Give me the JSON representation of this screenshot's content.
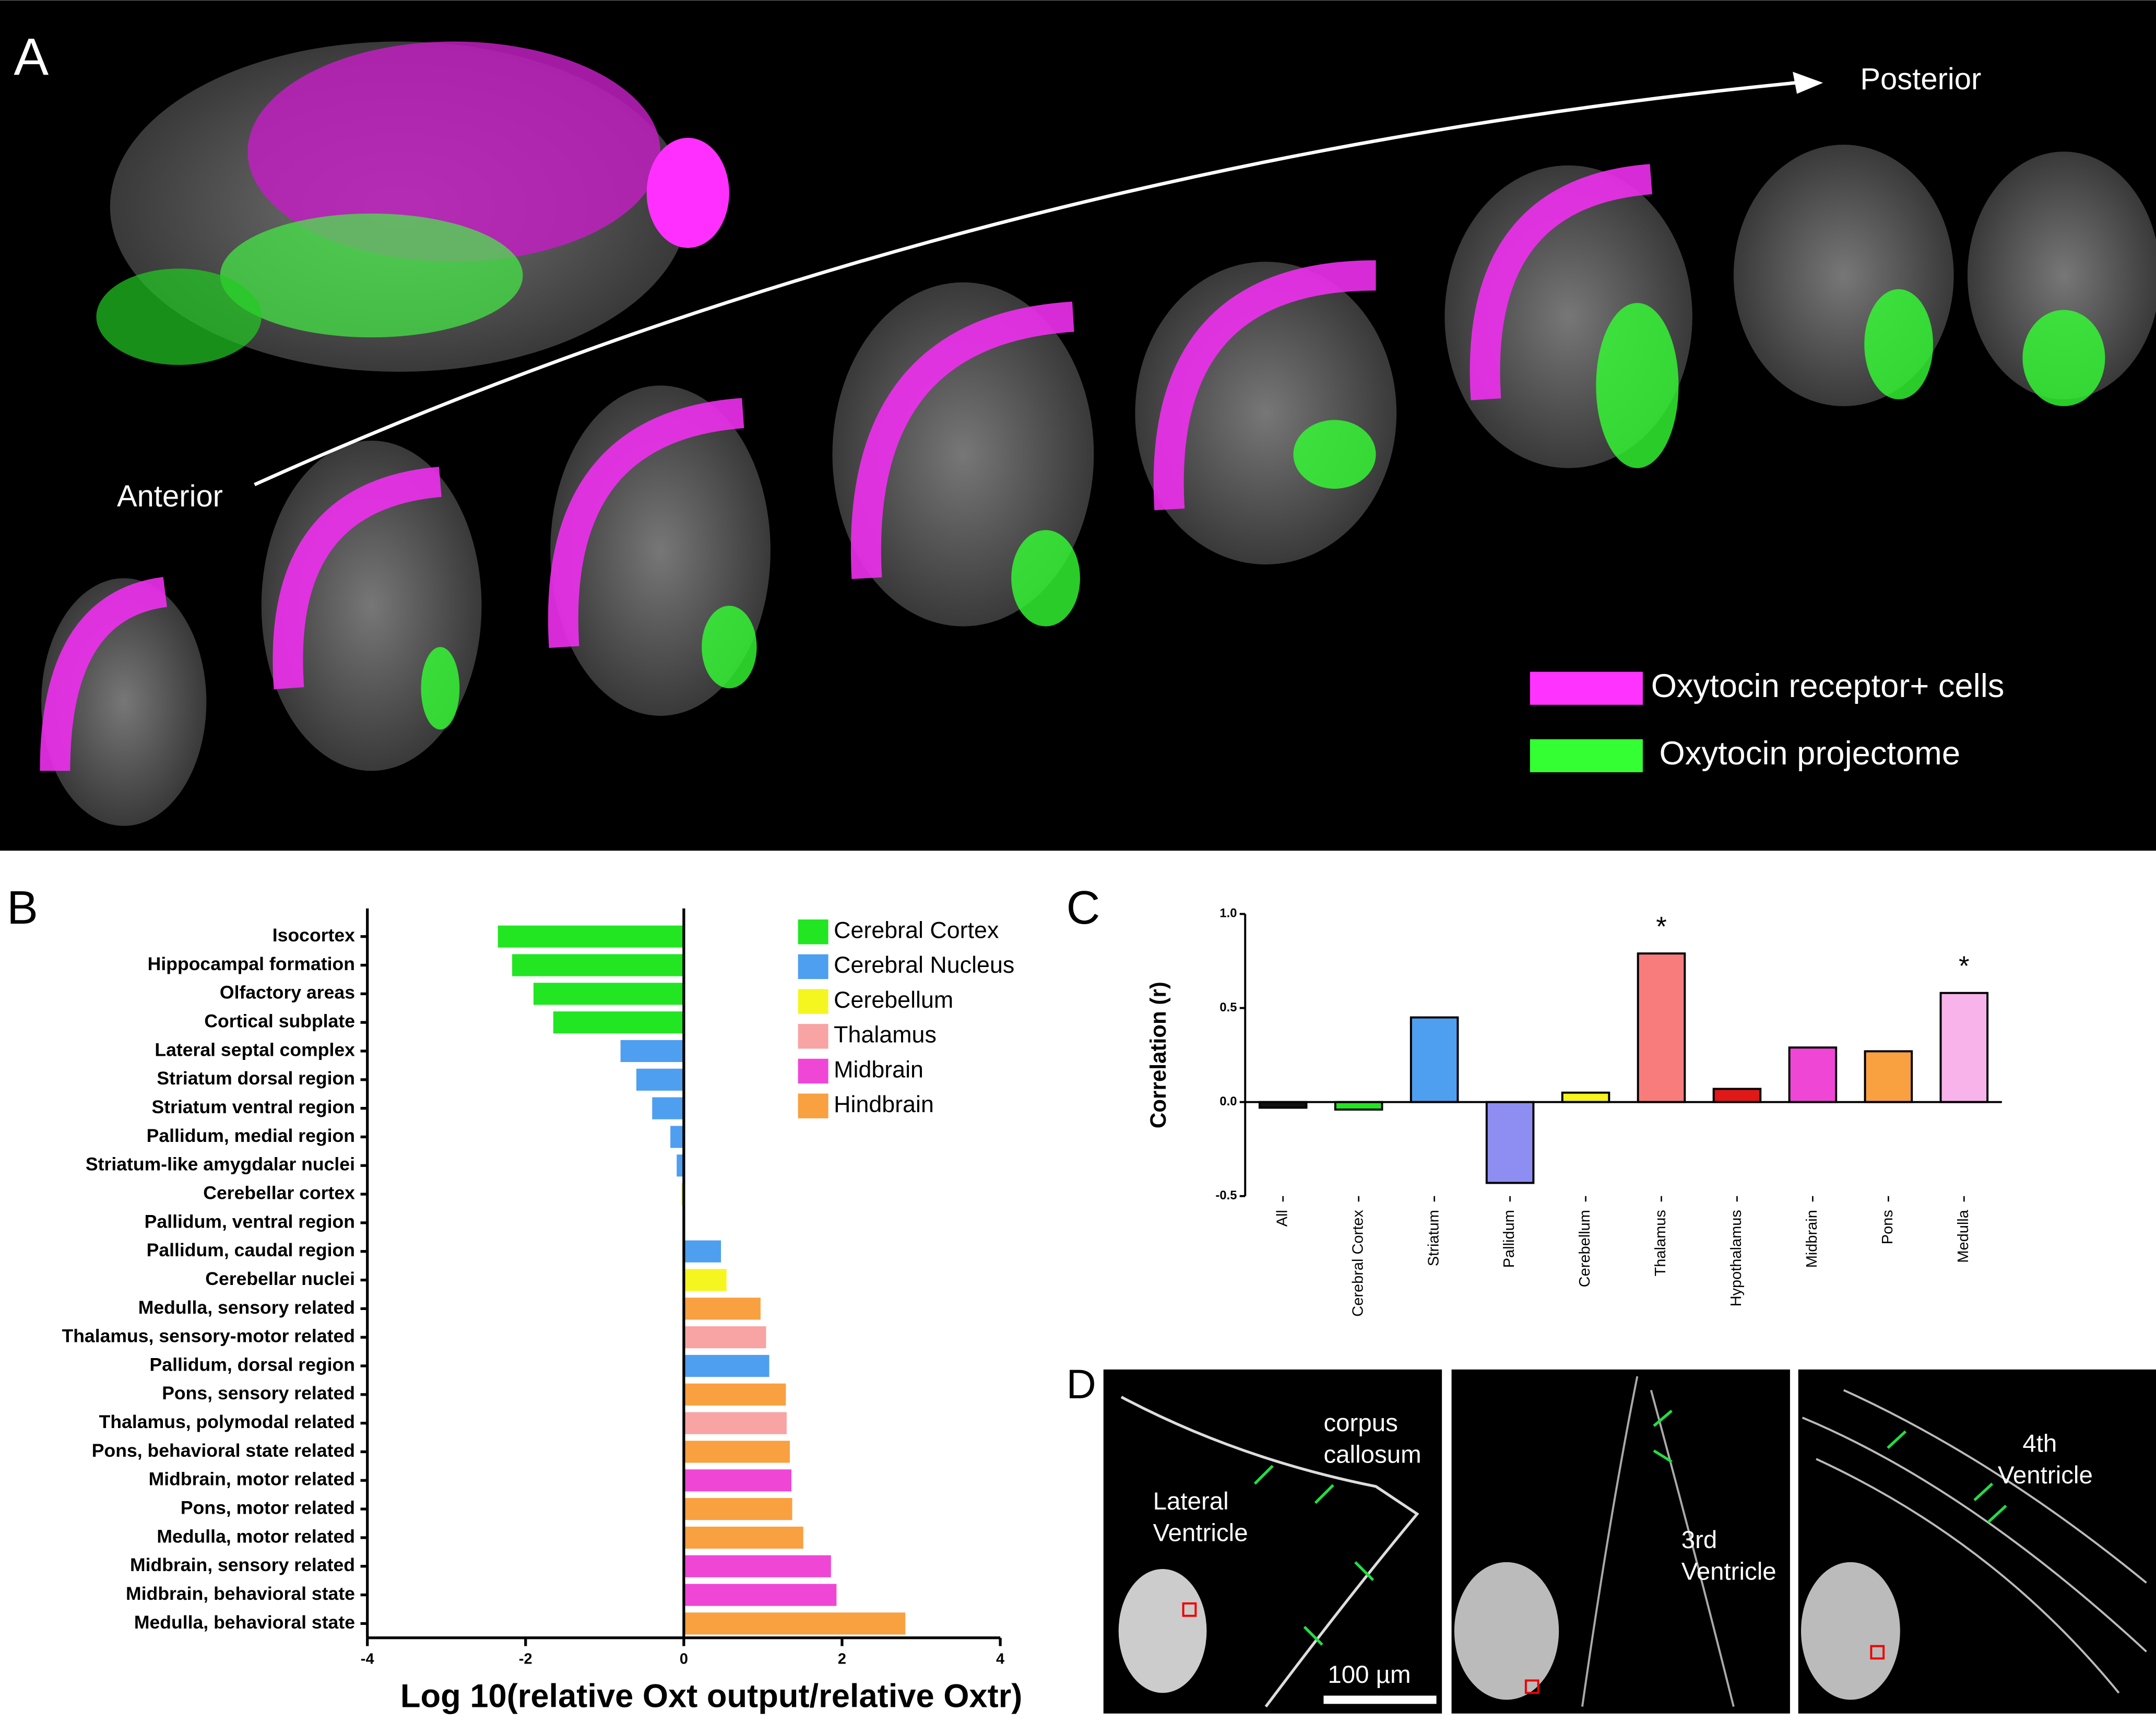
{
  "panel_a": {
    "label": "A",
    "anterior": "Anterior",
    "posterior": "Posterior",
    "legend": [
      {
        "name": "Oxytocin receptor+ cells",
        "color": "#ff33ff"
      },
      {
        "name": "Oxytocin projectome",
        "color": "#33ff33"
      }
    ]
  },
  "chart_data": [
    {
      "type": "hbar",
      "panel": "B",
      "xlabel": "Log 10(relative Oxt output/relative Oxtr)",
      "categories": [
        "Isocortex",
        "Hippocampal formation",
        "Olfactory areas",
        "Cortical subplate",
        "Lateral septal complex",
        "Striatum dorsal region",
        "Striatum ventral region",
        "Pallidum, medial region",
        "Striatum-like amygdalar nuclei",
        "Cerebellar cortex",
        "Pallidum, ventral region",
        "Pallidum, caudal region",
        "Cerebellar nuclei",
        "Medulla, sensory related",
        "Thalamus, sensory-motor related",
        "Pallidum, dorsal region",
        "Pons, sensory related",
        "Thalamus, polymodal related",
        "Pons, behavioral state related",
        "Midbrain, motor related",
        "Pons, motor related",
        "Medulla, motor related",
        "Midbrain, sensory related",
        "Midbrain, behavioral state",
        "Medulla, behavioral state"
      ],
      "values": [
        -2.35,
        -2.17,
        -1.9,
        -1.65,
        -0.8,
        -0.6,
        -0.4,
        -0.17,
        -0.09,
        -0.03,
        0,
        0.47,
        0.54,
        0.97,
        1.04,
        1.08,
        1.29,
        1.3,
        1.34,
        1.36,
        1.37,
        1.51,
        1.86,
        1.93,
        2.8
      ],
      "colors": [
        "#22e622",
        "#22e622",
        "#22e622",
        "#22e622",
        "#4f9ff0",
        "#4f9ff0",
        "#4f9ff0",
        "#4f9ff0",
        "#4f9ff0",
        "#f5f520",
        "#4f9ff0",
        "#4f9ff0",
        "#f5f520",
        "#f9a040",
        "#f8a4a4",
        "#4f9ff0",
        "#f9a040",
        "#f8a4a4",
        "#f9a040",
        "#f046d6",
        "#f9a040",
        "#f9a040",
        "#f046d6",
        "#f046d6",
        "#f9a040"
      ],
      "legend": [
        {
          "name": "Cerebral Cortex",
          "color": "#22e622"
        },
        {
          "name": "Cerebral Nucleus",
          "color": "#4f9ff0"
        },
        {
          "name": "Cerebellum",
          "color": "#f5f520"
        },
        {
          "name": "Thalamus",
          "color": "#f8a4a4"
        },
        {
          "name": "Midbrain",
          "color": "#f046d6"
        },
        {
          "name": "Hindbrain",
          "color": "#f9a040"
        }
      ],
      "xlim": [
        -4,
        4
      ],
      "xticks": [
        -4,
        -2,
        0,
        2,
        4
      ]
    },
    {
      "type": "bar",
      "panel": "C",
      "ylabel": "Correlation (r)",
      "categories": [
        "All",
        "Cerebral Cortex",
        "Striatum",
        "Pallidum",
        "Cerebellum",
        "Thalamus",
        "Hypothalamus",
        "Midbrain",
        "Pons",
        "Medulla"
      ],
      "values": [
        -0.03,
        -0.04,
        0.45,
        -0.43,
        0.05,
        0.79,
        0.07,
        0.29,
        0.27,
        0.58
      ],
      "colors": [
        "#111111",
        "#22e622",
        "#4f9ff0",
        "#8e8ef2",
        "#f5f520",
        "#f87c7c",
        "#e01818",
        "#f046d6",
        "#f9a040",
        "#f8b4ea"
      ],
      "significance": [
        null,
        null,
        null,
        null,
        null,
        "*",
        null,
        null,
        null,
        "*"
      ],
      "ylim": [
        -0.5,
        1.0
      ],
      "yticks": [
        -0.5,
        {
          "value": 0,
          "label": "0.0"
        },
        0.5,
        {
          "value": 1.0,
          "label": "1.0"
        }
      ]
    }
  ],
  "panel_d": {
    "label": "D",
    "corpus": "corpus",
    "callosum": "callosum",
    "lateral": "Lateral",
    "ventricle1": "Ventricle",
    "third": "3rd",
    "ventricle2": "Ventricle",
    "fourth": "4th",
    "ventricle3": "Ventricle",
    "scale": "100 µm"
  }
}
